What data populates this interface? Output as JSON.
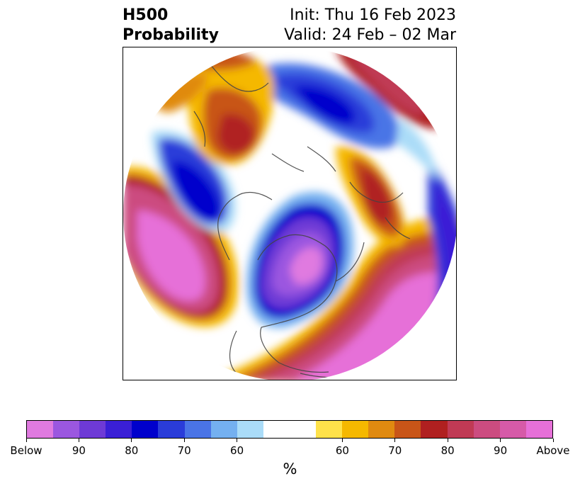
{
  "title": {
    "left_line1": "H500",
    "left_line2": "Probability",
    "right_line1": "Init: Thu 16 Feb 2023",
    "right_line2": "Valid: 24 Feb – 02 Mar"
  },
  "map": {
    "projection": "north-polar-stereographic",
    "coastline_color": "#444444",
    "features": [
      "below-normal-trough-north-america",
      "above-normal-ridge-north-pacific",
      "above-normal-ridge-atlantic",
      "below-normal-trough-north-atlantic",
      "above-normal-ridge-scandinavia",
      "below-normal-trough-siberia"
    ]
  },
  "colorbar": {
    "colors": [
      "#e07ae0",
      "#9b57e0",
      "#6e3ad6",
      "#3a1fd6",
      "#0000cc",
      "#2a3cd9",
      "#4a74e6",
      "#74b0f0",
      "#aadcf8",
      "#ffffff",
      "#ffffff",
      "#ffe24a",
      "#f5b800",
      "#e08a10",
      "#c85518",
      "#b02020",
      "#c03a55",
      "#cc4c80",
      "#d65aa8",
      "#e670d8"
    ],
    "tick_labels": [
      "Below",
      "90",
      "80",
      "70",
      "60",
      "60",
      "70",
      "80",
      "90",
      "Above"
    ],
    "unit": "%"
  }
}
